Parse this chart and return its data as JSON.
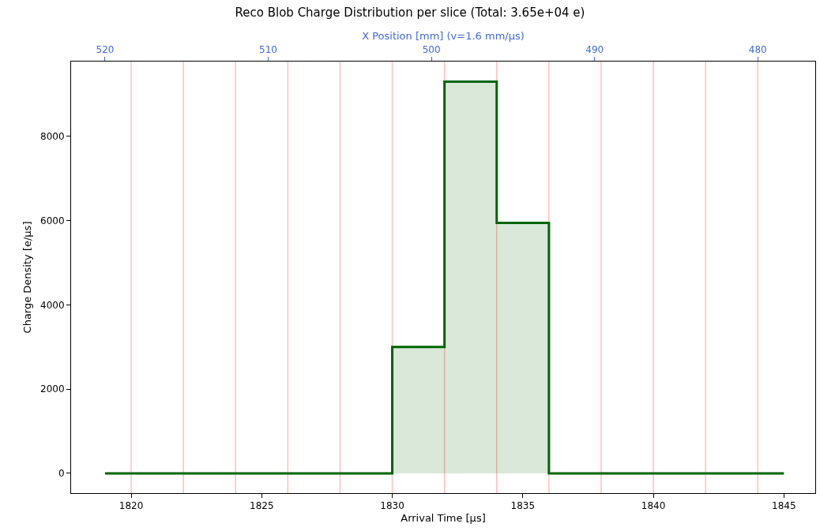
{
  "chart_data": {
    "type": "step",
    "title": "Reco Blob Charge Distribution per slice (Total: 3.65e+04 e)",
    "xlabel": "Arrival Time [μs]",
    "ylabel": "Charge Density [e/μs]",
    "x2label": "X Position [mm] (v=1.6 mm/μs)",
    "x": [
      1819,
      1830,
      1832,
      1834,
      1836,
      1845
    ],
    "series": [
      {
        "color": "#006400",
        "values": [
          0,
          3000,
          9300,
          5950,
          0,
          0
        ]
      }
    ],
    "xlim": [
      1817.7,
      1846.2
    ],
    "xticks": [
      1820,
      1825,
      1830,
      1835,
      1840,
      1845
    ],
    "ylim": [
      -470,
      9780
    ],
    "yticks": [
      0,
      2000,
      4000,
      6000,
      8000
    ],
    "x2lim": [
      522.08,
      476.48
    ],
    "x2ticks": [
      520,
      510,
      500,
      490,
      480
    ],
    "ref_lines": [
      {
        "axis": "x",
        "value": 1820,
        "color": "#ffbfbf"
      },
      {
        "axis": "x",
        "value": 1822,
        "color": "#ffbfbf"
      },
      {
        "axis": "x",
        "value": 1824,
        "color": "#ffbfbf"
      },
      {
        "axis": "x",
        "value": 1826,
        "color": "#ffbfbf"
      },
      {
        "axis": "x",
        "value": 1828,
        "color": "#ffbfbf"
      },
      {
        "axis": "x",
        "value": 1830,
        "color": "#ffbfbf"
      },
      {
        "axis": "x",
        "value": 1832,
        "color": "#ffbfbf"
      },
      {
        "axis": "x",
        "value": 1834,
        "color": "#ffbfbf"
      },
      {
        "axis": "x",
        "value": 1836,
        "color": "#ffbfbf"
      },
      {
        "axis": "x",
        "value": 1838,
        "color": "#ffbfbf"
      },
      {
        "axis": "x",
        "value": 1840,
        "color": "#ffbfbf"
      },
      {
        "axis": "x",
        "value": 1842,
        "color": "#ffbfbf"
      },
      {
        "axis": "x",
        "value": 1844,
        "color": "#ffbfbf"
      }
    ]
  }
}
